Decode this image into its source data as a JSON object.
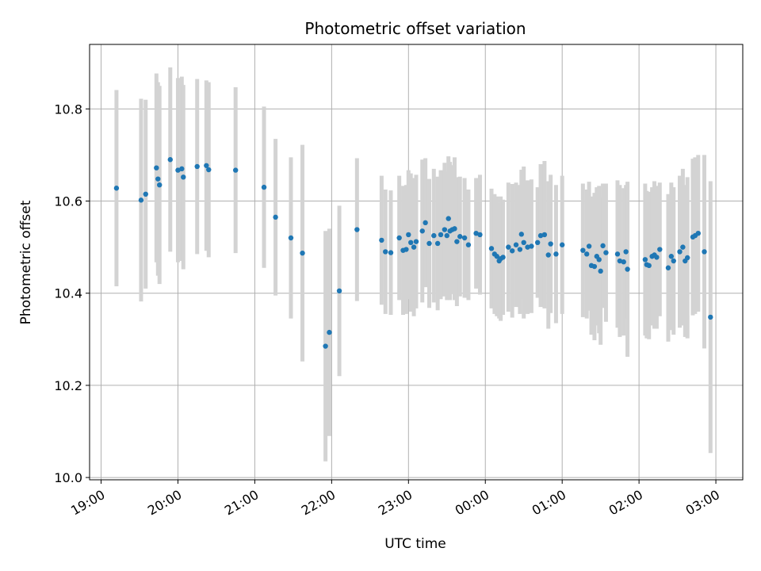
{
  "chart_data": {
    "type": "scatter",
    "title": "Photometric offset variation",
    "xlabel": "UTC time",
    "ylabel": "Photometric offset",
    "x_axis": {
      "unit": "hours since 19:00 UTC",
      "range": [
        -0.15,
        8.35
      ],
      "ticks": [
        0,
        1,
        2,
        3,
        4,
        5,
        6,
        7,
        8
      ],
      "tick_labels": [
        "19:00",
        "20:00",
        "21:00",
        "22:00",
        "23:00",
        "00:00",
        "01:00",
        "02:00",
        "03:00"
      ]
    },
    "y_axis": {
      "range": [
        9.995,
        10.94
      ],
      "ticks": [
        10.0,
        10.2,
        10.4,
        10.6,
        10.8
      ],
      "tick_labels": [
        "10.0",
        "10.2",
        "10.4",
        "10.6",
        "10.8"
      ]
    },
    "grid": true,
    "colors": {
      "points": "#1f77b4",
      "errorbars": "#d3d3d3",
      "grid": "#b0b0b0"
    },
    "series": [
      {
        "x": [
          0.2,
          0.52,
          0.58,
          0.72,
          0.74,
          0.76,
          0.9,
          1.0,
          1.05,
          1.07,
          1.25,
          1.37,
          1.4,
          1.75,
          2.12,
          2.27,
          2.47,
          2.62,
          2.92,
          2.97,
          3.1,
          3.33,
          3.65,
          3.7,
          3.77,
          3.88,
          3.93,
          3.97,
          4.0,
          4.03,
          4.07,
          4.1,
          4.18,
          4.22,
          4.27,
          4.33,
          4.38,
          4.42,
          4.47,
          4.5,
          4.52,
          4.54,
          4.57,
          4.6,
          4.63,
          4.67,
          4.73,
          4.78,
          4.88,
          4.93,
          5.08,
          5.12,
          5.15,
          5.18,
          5.2,
          5.23,
          5.3,
          5.35,
          5.4,
          5.45,
          5.47,
          5.5,
          5.55,
          5.6,
          5.68,
          5.72,
          5.77,
          5.82,
          5.85,
          5.92,
          6.0,
          6.27,
          6.32,
          6.35,
          6.38,
          6.42,
          6.45,
          6.48,
          6.5,
          6.53,
          6.57,
          6.72,
          6.75,
          6.8,
          6.83,
          6.85,
          7.08,
          7.1,
          7.13,
          7.17,
          7.2,
          7.23,
          7.27,
          7.38,
          7.42,
          7.45,
          7.53,
          7.57,
          7.6,
          7.63,
          7.7,
          7.73,
          7.77,
          7.85,
          7.93
        ],
        "y": [
          10.628,
          10.602,
          10.615,
          10.672,
          10.648,
          10.635,
          10.69,
          10.667,
          10.67,
          10.652,
          10.675,
          10.677,
          10.668,
          10.667,
          10.63,
          10.565,
          10.52,
          10.487,
          10.285,
          10.315,
          10.405,
          10.538,
          10.515,
          10.49,
          10.488,
          10.52,
          10.493,
          10.495,
          10.527,
          10.51,
          10.5,
          10.512,
          10.535,
          10.553,
          10.508,
          10.525,
          10.508,
          10.527,
          10.538,
          10.525,
          10.562,
          10.535,
          10.538,
          10.54,
          10.512,
          10.523,
          10.52,
          10.505,
          10.53,
          10.527,
          10.497,
          10.485,
          10.48,
          10.47,
          10.475,
          10.478,
          10.5,
          10.492,
          10.505,
          10.495,
          10.528,
          10.51,
          10.5,
          10.502,
          10.51,
          10.525,
          10.527,
          10.483,
          10.507,
          10.485,
          10.505,
          10.493,
          10.485,
          10.502,
          10.46,
          10.458,
          10.48,
          10.473,
          10.448,
          10.503,
          10.488,
          10.485,
          10.47,
          10.468,
          10.49,
          10.452,
          10.473,
          10.462,
          10.46,
          10.48,
          10.483,
          10.478,
          10.495,
          10.455,
          10.48,
          10.47,
          10.49,
          10.5,
          10.47,
          10.477,
          10.522,
          10.525,
          10.53,
          10.49,
          10.348
        ],
        "yerr": [
          0.213,
          0.22,
          0.205,
          0.205,
          0.21,
          0.215,
          0.2,
          0.2,
          0.2,
          0.2,
          0.19,
          0.185,
          0.19,
          0.18,
          0.175,
          0.17,
          0.175,
          0.235,
          0.25,
          0.225,
          0.185,
          0.155,
          0.14,
          0.135,
          0.135,
          0.135,
          0.14,
          0.14,
          0.14,
          0.15,
          0.15,
          0.145,
          0.155,
          0.14,
          0.14,
          0.145,
          0.145,
          0.14,
          0.145,
          0.14,
          0.135,
          0.15,
          0.14,
          0.155,
          0.14,
          0.13,
          0.13,
          0.12,
          0.12,
          0.13,
          0.13,
          0.13,
          0.13,
          0.125,
          0.135,
          0.125,
          0.14,
          0.145,
          0.135,
          0.14,
          0.14,
          0.165,
          0.145,
          0.145,
          0.12,
          0.155,
          0.16,
          0.16,
          0.15,
          0.15,
          0.15,
          0.145,
          0.14,
          0.14,
          0.15,
          0.16,
          0.15,
          0.16,
          0.16,
          0.135,
          0.15,
          0.16,
          0.165,
          0.16,
          0.145,
          0.19,
          0.165,
          0.16,
          0.16,
          0.15,
          0.16,
          0.155,
          0.145,
          0.16,
          0.16,
          0.16,
          0.165,
          0.17,
          0.165,
          0.175,
          0.17,
          0.17,
          0.17,
          0.21,
          0.295
        ]
      }
    ]
  }
}
